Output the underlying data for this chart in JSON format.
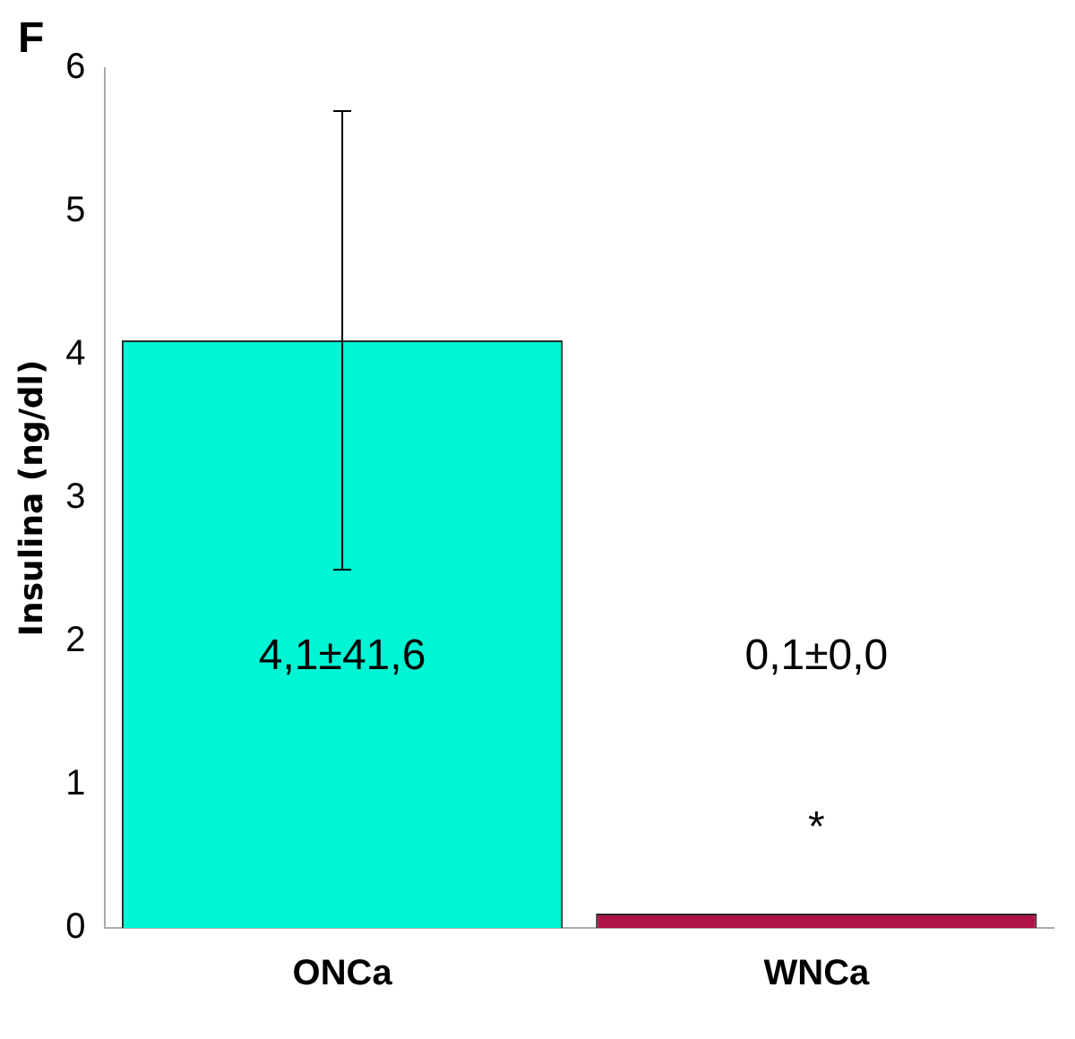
{
  "chart_data": {
    "type": "bar",
    "title": "F",
    "ylabel": "Insulina (ng/dl)",
    "categories": [
      "ONCa",
      "WNCa"
    ],
    "values": [
      4.1,
      0.1
    ],
    "colors": [
      "#00f5d4",
      "#b0124a"
    ],
    "errors": [
      1.6,
      null
    ],
    "annotations": [
      "4,1±41,6",
      "0,1±0,0",
      "*"
    ],
    "ylim": [
      0,
      6
    ],
    "yticks": [
      0,
      1,
      2,
      3,
      4,
      5,
      6
    ],
    "grid": false,
    "legend": false
  }
}
